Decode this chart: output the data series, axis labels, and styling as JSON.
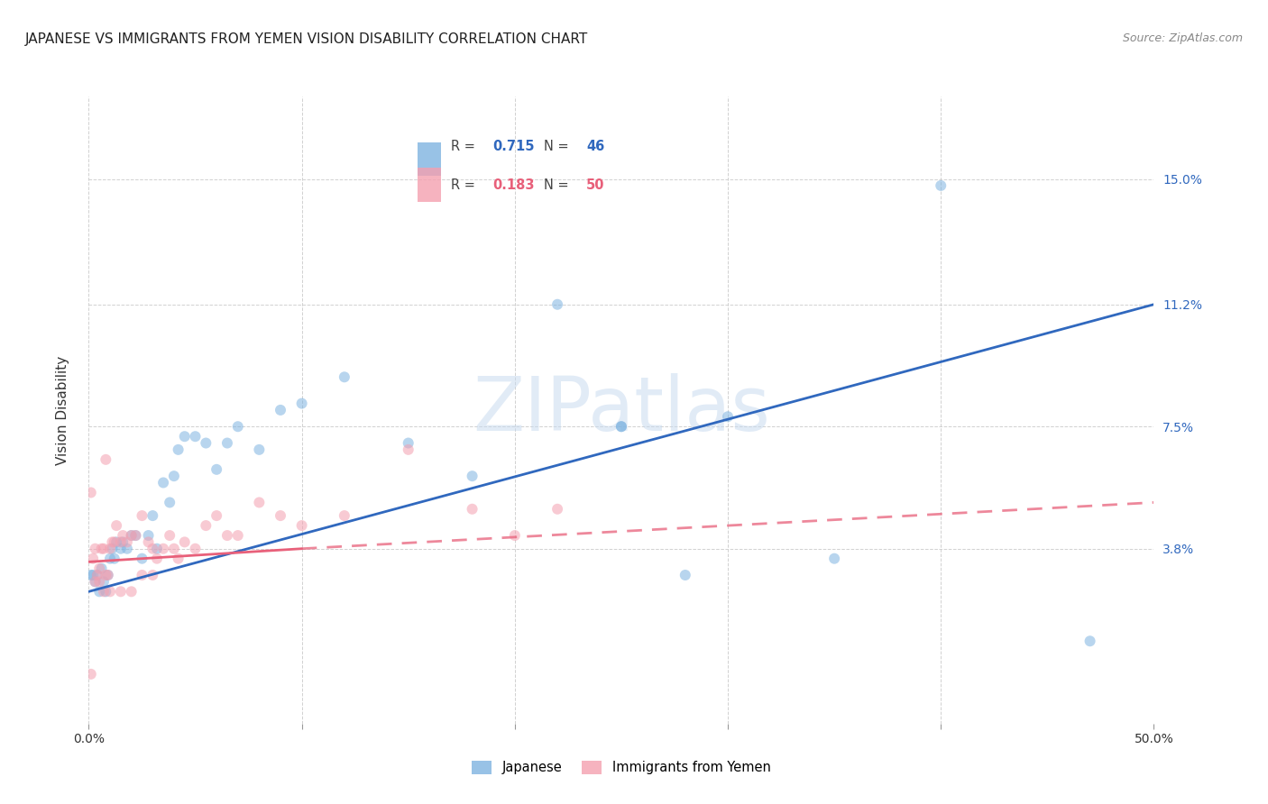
{
  "title": "JAPANESE VS IMMIGRANTS FROM YEMEN VISION DISABILITY CORRELATION CHART",
  "source": "Source: ZipAtlas.com",
  "ylabel": "Vision Disability",
  "xlim": [
    0.0,
    0.5
  ],
  "ylim": [
    -0.015,
    0.175
  ],
  "ytick_labels": [
    "3.8%",
    "7.5%",
    "11.2%",
    "15.0%"
  ],
  "ytick_values": [
    0.038,
    0.075,
    0.112,
    0.15
  ],
  "watermark": "ZIPatlas",
  "legend": {
    "blue_r": "0.715",
    "blue_n": "46",
    "pink_r": "0.183",
    "pink_n": "50",
    "label_blue": "Japanese",
    "label_pink": "Immigrants from Yemen"
  },
  "blue_scatter_x": [
    0.001,
    0.002,
    0.003,
    0.004,
    0.005,
    0.006,
    0.007,
    0.008,
    0.009,
    0.01,
    0.011,
    0.012,
    0.013,
    0.015,
    0.016,
    0.018,
    0.02,
    0.022,
    0.025,
    0.028,
    0.03,
    0.032,
    0.035,
    0.038,
    0.04,
    0.042,
    0.045,
    0.05,
    0.055,
    0.06,
    0.065,
    0.07,
    0.08,
    0.09,
    0.1,
    0.12,
    0.15,
    0.18,
    0.22,
    0.25,
    0.28,
    0.35,
    0.25,
    0.3,
    0.4,
    0.47
  ],
  "blue_scatter_y": [
    0.03,
    0.03,
    0.028,
    0.03,
    0.025,
    0.032,
    0.028,
    0.025,
    0.03,
    0.035,
    0.038,
    0.035,
    0.04,
    0.038,
    0.04,
    0.038,
    0.042,
    0.042,
    0.035,
    0.042,
    0.048,
    0.038,
    0.058,
    0.052,
    0.06,
    0.068,
    0.072,
    0.072,
    0.07,
    0.062,
    0.07,
    0.075,
    0.068,
    0.08,
    0.082,
    0.09,
    0.07,
    0.06,
    0.112,
    0.075,
    0.03,
    0.035,
    0.075,
    0.078,
    0.148,
    0.01
  ],
  "pink_scatter_x": [
    0.001,
    0.002,
    0.003,
    0.004,
    0.005,
    0.006,
    0.007,
    0.008,
    0.009,
    0.01,
    0.011,
    0.012,
    0.013,
    0.015,
    0.016,
    0.018,
    0.02,
    0.022,
    0.025,
    0.028,
    0.03,
    0.032,
    0.035,
    0.038,
    0.04,
    0.042,
    0.045,
    0.05,
    0.055,
    0.06,
    0.065,
    0.07,
    0.08,
    0.09,
    0.1,
    0.12,
    0.15,
    0.18,
    0.22,
    0.008,
    0.003,
    0.005,
    0.007,
    0.01,
    0.015,
    0.02,
    0.025,
    0.03,
    0.2,
    0.001
  ],
  "pink_scatter_y": [
    0.055,
    0.035,
    0.038,
    0.03,
    0.032,
    0.038,
    0.038,
    0.03,
    0.03,
    0.038,
    0.04,
    0.04,
    0.045,
    0.04,
    0.042,
    0.04,
    0.042,
    0.042,
    0.048,
    0.04,
    0.038,
    0.035,
    0.038,
    0.042,
    0.038,
    0.035,
    0.04,
    0.038,
    0.045,
    0.048,
    0.042,
    0.042,
    0.052,
    0.048,
    0.045,
    0.048,
    0.068,
    0.05,
    0.05,
    0.065,
    0.028,
    0.028,
    0.025,
    0.025,
    0.025,
    0.025,
    0.03,
    0.03,
    0.042,
    0.0
  ],
  "blue_line_x": [
    0.0,
    0.5
  ],
  "blue_line_y": [
    0.025,
    0.112
  ],
  "pink_solid_line_x": [
    0.0,
    0.1
  ],
  "pink_solid_line_y": [
    0.034,
    0.038
  ],
  "pink_dash_line_x": [
    0.1,
    0.5
  ],
  "pink_dash_line_y": [
    0.038,
    0.052
  ],
  "blue_color": "#7EB3E0",
  "pink_color": "#F4A0B0",
  "blue_line_color": "#3068BE",
  "pink_line_color": "#E8607A",
  "grid_color": "#CCCCCC",
  "background_color": "#FFFFFF",
  "title_fontsize": 11,
  "axis_label_fontsize": 11,
  "tick_fontsize": 10,
  "scatter_size": 75,
  "scatter_alpha": 0.55,
  "line_width": 2.0
}
